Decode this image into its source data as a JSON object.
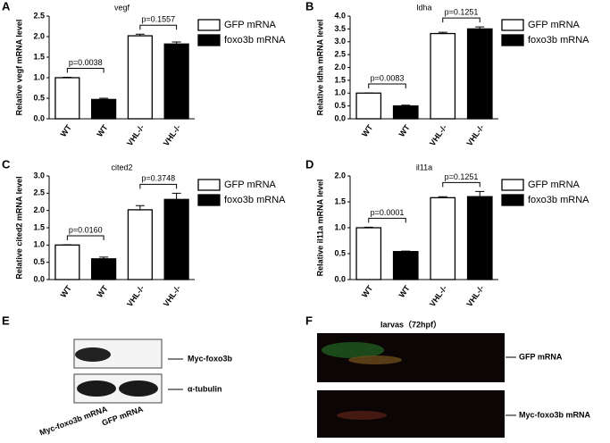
{
  "chart_data": [
    {
      "type": "bar",
      "label": "A",
      "title": "vegf",
      "ylabel": "Relative vegf mRNA level",
      "categories": [
        "WT",
        "WT",
        "VHL-/-",
        "VHL-/-"
      ],
      "series": [
        {
          "name": "GFP mRNA",
          "color": "#ffffff",
          "values": [
            1.0,
            null,
            2.02,
            null
          ],
          "errors": [
            0.01,
            null,
            0.04,
            null
          ]
        },
        {
          "name": "foxo3b mRNA",
          "color": "#000000",
          "values": [
            null,
            0.47,
            null,
            1.82
          ],
          "errors": [
            null,
            0.03,
            null,
            0.05
          ]
        }
      ],
      "annotations": [
        "p=0.0038",
        "p=0.1557"
      ],
      "ylim": [
        0,
        2.5
      ],
      "yticks": [
        {
          "value": 0,
          "label": "0.0"
        },
        0.5,
        {
          "value": 1,
          "label": "1.0"
        },
        1.5,
        {
          "value": 2,
          "label": "2.0"
        },
        2.5
      ]
    },
    {
      "type": "bar",
      "label": "B",
      "title": "ldha",
      "ylabel": "Relative ldha mRNA level",
      "categories": [
        "WT",
        "WT",
        "VHL-/-",
        "VHL-/-"
      ],
      "series": [
        {
          "name": "GFP mRNA",
          "color": "#ffffff",
          "values": [
            1.0,
            null,
            3.32,
            null
          ],
          "errors": [
            0.01,
            null,
            0.05,
            null
          ]
        },
        {
          "name": "foxo3b mRNA",
          "color": "#000000",
          "values": [
            null,
            0.5,
            null,
            3.5
          ],
          "errors": [
            null,
            0.03,
            null,
            0.08
          ]
        }
      ],
      "annotations": [
        "p=0.0083",
        "p=0.1251"
      ],
      "ylim": [
        0,
        4
      ],
      "yticks": [
        {
          "value": 0,
          "label": "0.0"
        },
        0.5,
        {
          "value": 1,
          "label": "1.0"
        },
        1.5,
        {
          "value": 2,
          "label": "2.0"
        },
        2.5,
        {
          "value": 3,
          "label": "3.0"
        },
        3.5,
        {
          "value": 4,
          "label": "4.0"
        }
      ]
    },
    {
      "type": "bar",
      "label": "C",
      "title": "cited2",
      "ylabel": "Relative cited2 mRNA level",
      "categories": [
        "WT",
        "WT",
        "VHL-/-",
        "VHL-/-"
      ],
      "series": [
        {
          "name": "GFP mRNA",
          "color": "#ffffff",
          "values": [
            1.0,
            null,
            2.02,
            null
          ],
          "errors": [
            0.01,
            null,
            0.12,
            null
          ]
        },
        {
          "name": "foxo3b mRNA",
          "color": "#000000",
          "values": [
            null,
            0.6,
            null,
            2.32
          ],
          "errors": [
            null,
            0.05,
            null,
            0.18
          ]
        }
      ],
      "annotations": [
        "p=0.0160",
        "p=0.3748"
      ],
      "ylim": [
        0,
        3
      ],
      "yticks": [
        {
          "value": 0,
          "label": "0.0"
        },
        0.5,
        {
          "value": 1,
          "label": "1.0"
        },
        1.5,
        {
          "value": 2,
          "label": "2.0"
        },
        2.5,
        {
          "value": 3,
          "label": "3.0"
        }
      ]
    },
    {
      "type": "bar",
      "label": "D",
      "title": "il11a",
      "ylabel": "Relative il11a mRNA level",
      "categories": [
        "WT",
        "WT",
        "VHL-/-",
        "VHL-/-"
      ],
      "series": [
        {
          "name": "GFP mRNA",
          "color": "#ffffff",
          "values": [
            1.0,
            null,
            1.58,
            null
          ],
          "errors": [
            0.01,
            null,
            0.02,
            null
          ]
        },
        {
          "name": "foxo3b mRNA",
          "color": "#000000",
          "values": [
            null,
            0.54,
            null,
            1.6
          ],
          "errors": [
            null,
            0.01,
            null,
            0.1
          ]
        }
      ],
      "annotations": [
        "p=0.0001",
        "p=0.1251"
      ],
      "ylim": [
        0,
        2
      ],
      "yticks": [
        {
          "value": 0,
          "label": "0.0"
        },
        0.5,
        {
          "value": 1,
          "label": "1.0"
        },
        1.5,
        {
          "value": 2,
          "label": "2.0"
        }
      ]
    }
  ],
  "blot": {
    "label": "E",
    "bands": [
      "Myc-foxo3b",
      "α-tubulin"
    ],
    "lanes": [
      "Myc-foxo3b mRNA",
      "GFP mRNA"
    ]
  },
  "imaging": {
    "label": "F",
    "title": "larvas（72hpf）",
    "rows": [
      "GFP  mRNA",
      "Myc-foxo3b mRNA"
    ]
  }
}
